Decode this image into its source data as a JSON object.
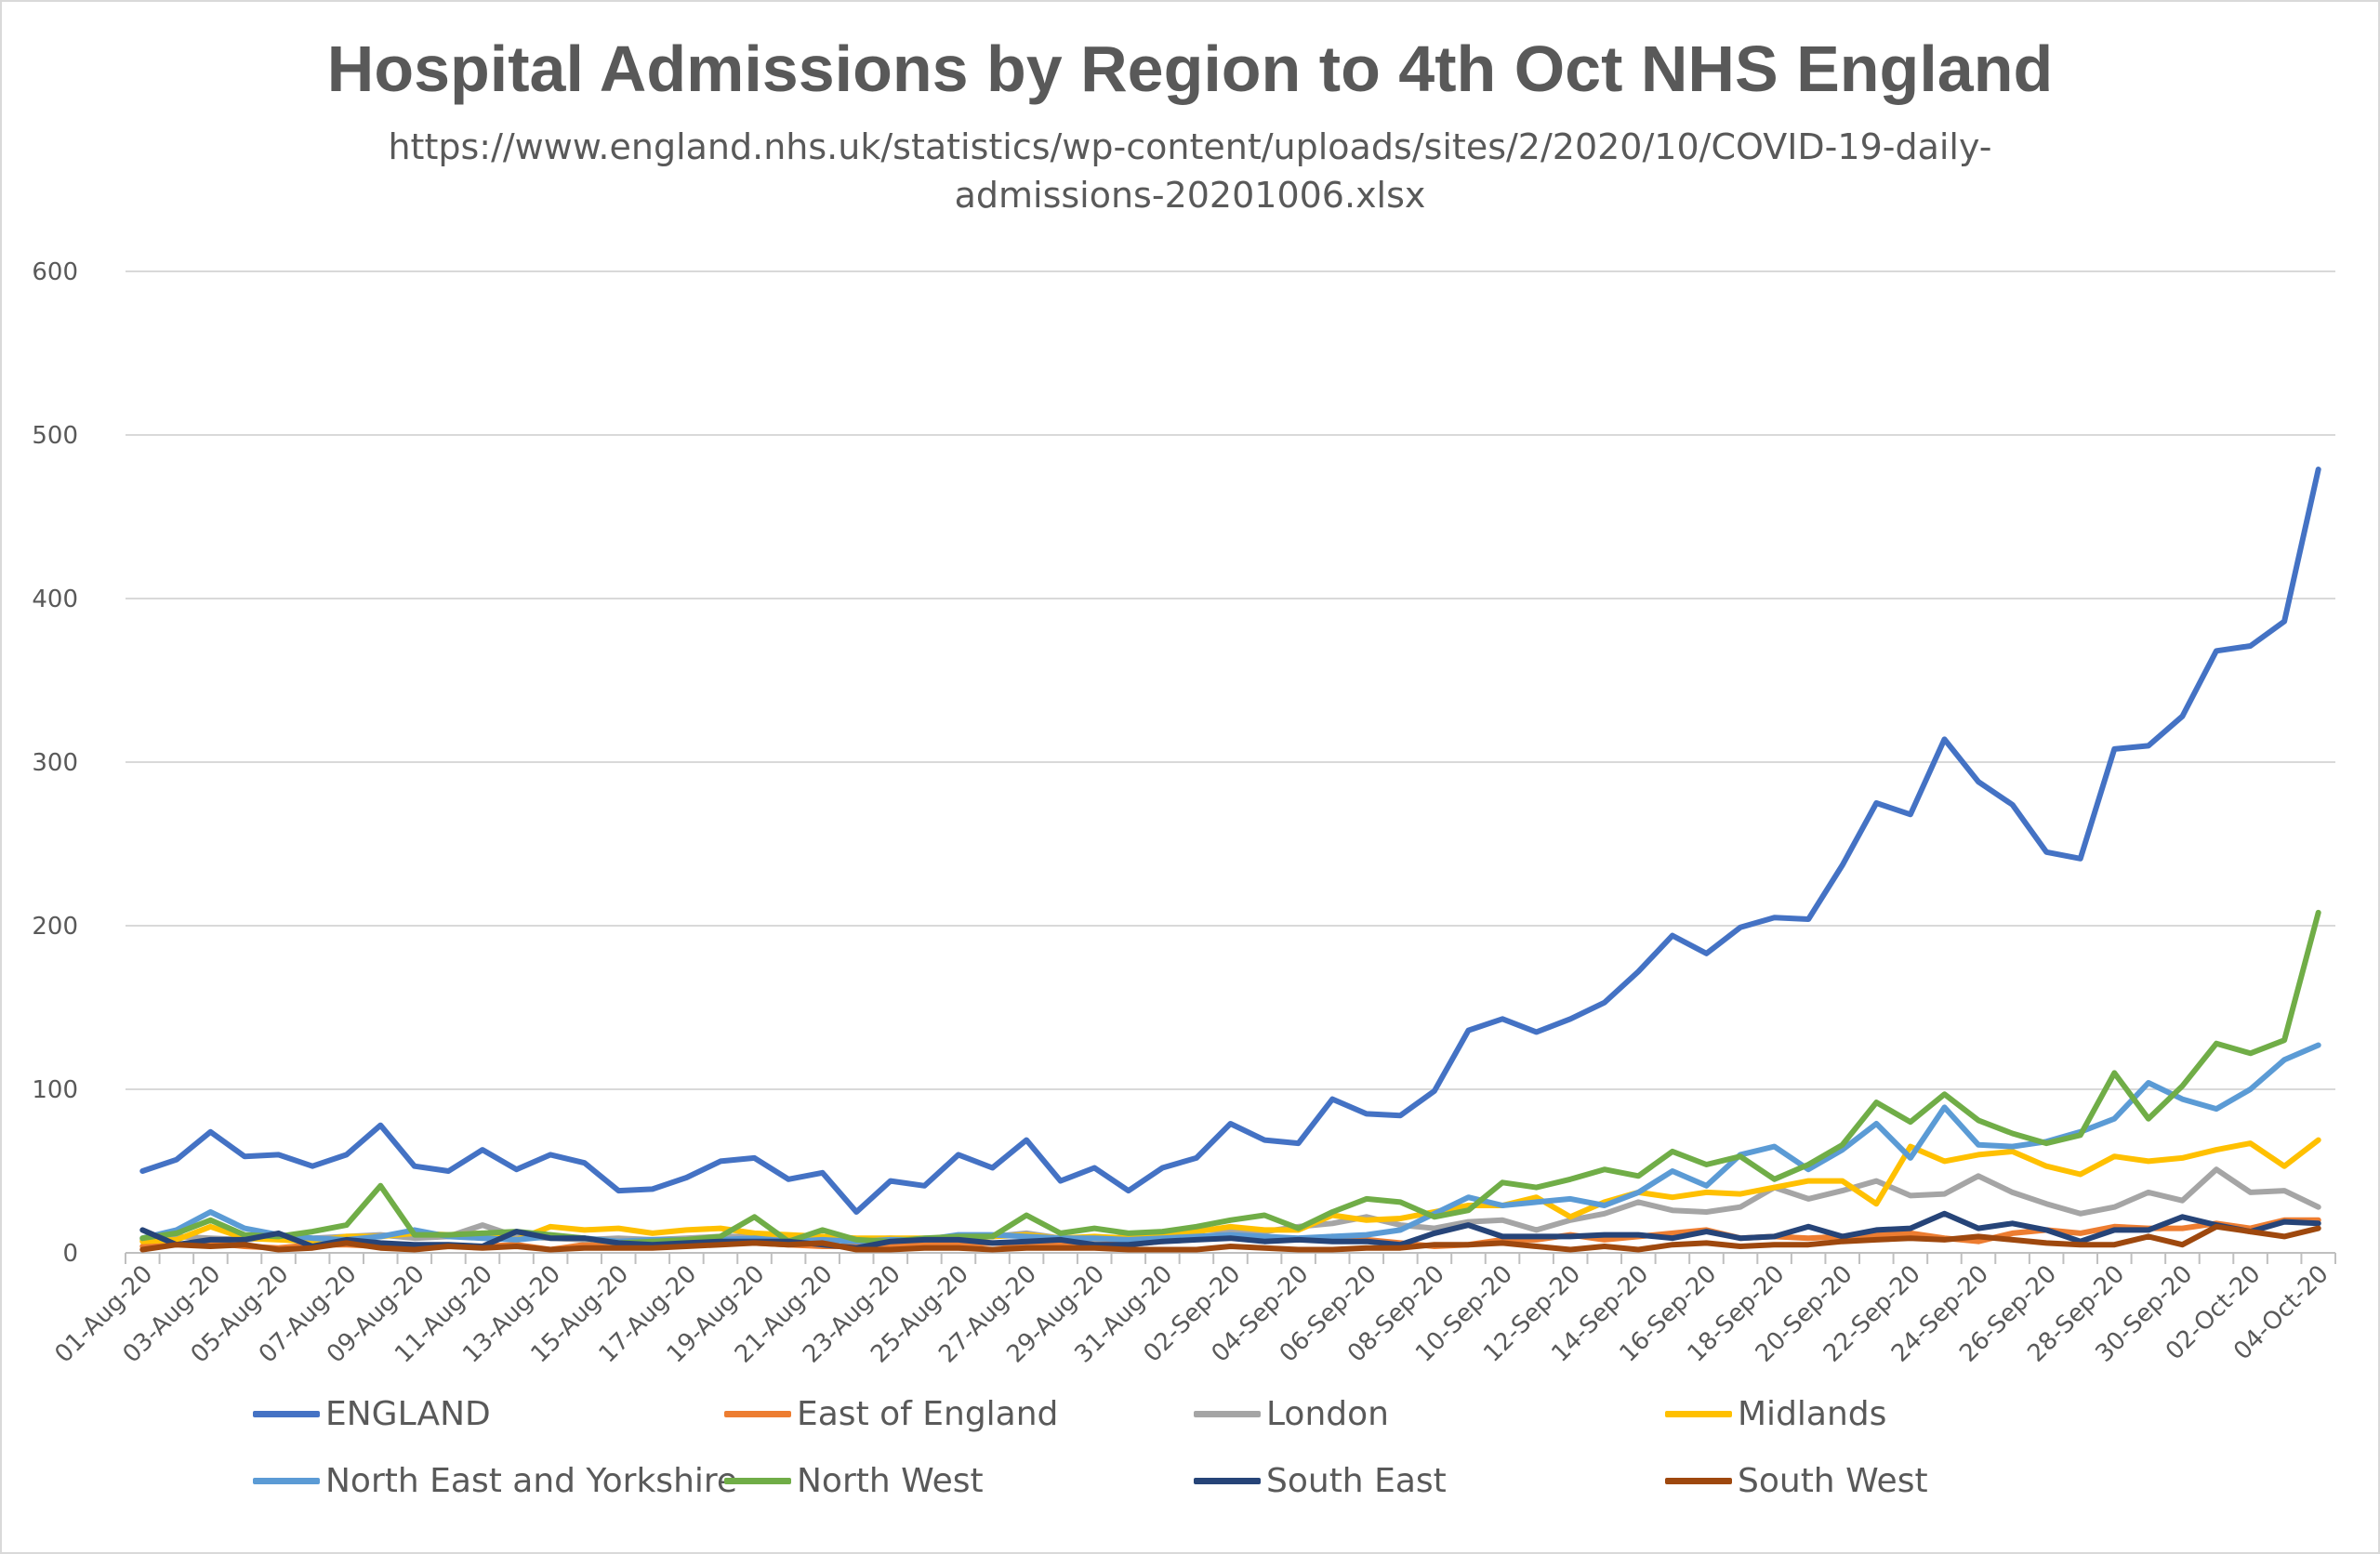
{
  "chart_data": {
    "type": "line",
    "title": "Hospital Admissions by Region to 4th Oct NHS England",
    "subtitle": "https://www.england.nhs.uk/statistics/wp-content/uploads/sites/2/2020/10/COVID-19-daily-admissions-20201006.xlsx",
    "subtitle_lines": [
      "https://www.england.nhs.uk/statistics/wp-content/uploads/sites/2/2020/10/COVID-19-daily-",
      "admissions-20201006.xlsx"
    ],
    "xlabel": "",
    "ylabel": "",
    "ylim": [
      0,
      600
    ],
    "yticks": [
      0,
      100,
      200,
      300,
      400,
      500,
      600
    ],
    "grid": true,
    "legend_position": "bottom",
    "x": [
      "01-Aug-20",
      "02-Aug-20",
      "03-Aug-20",
      "04-Aug-20",
      "05-Aug-20",
      "06-Aug-20",
      "07-Aug-20",
      "08-Aug-20",
      "09-Aug-20",
      "10-Aug-20",
      "11-Aug-20",
      "12-Aug-20",
      "13-Aug-20",
      "14-Aug-20",
      "15-Aug-20",
      "16-Aug-20",
      "17-Aug-20",
      "18-Aug-20",
      "19-Aug-20",
      "20-Aug-20",
      "21-Aug-20",
      "22-Aug-20",
      "23-Aug-20",
      "24-Aug-20",
      "25-Aug-20",
      "26-Aug-20",
      "27-Aug-20",
      "28-Aug-20",
      "29-Aug-20",
      "30-Aug-20",
      "31-Aug-20",
      "01-Sep-20",
      "02-Sep-20",
      "03-Sep-20",
      "04-Sep-20",
      "05-Sep-20",
      "06-Sep-20",
      "07-Sep-20",
      "08-Sep-20",
      "09-Sep-20",
      "10-Sep-20",
      "11-Sep-20",
      "12-Sep-20",
      "13-Sep-20",
      "14-Sep-20",
      "15-Sep-20",
      "16-Sep-20",
      "17-Sep-20",
      "18-Sep-20",
      "19-Sep-20",
      "20-Sep-20",
      "21-Sep-20",
      "22-Sep-20",
      "23-Sep-20",
      "24-Sep-20",
      "25-Sep-20",
      "26-Sep-20",
      "27-Sep-20",
      "28-Sep-20",
      "29-Sep-20",
      "30-Sep-20",
      "01-Oct-20",
      "02-Oct-20",
      "03-Oct-20",
      "04-Oct-20"
    ],
    "x_tick_labels": [
      "01-Aug-20",
      "03-Aug-20",
      "05-Aug-20",
      "07-Aug-20",
      "09-Aug-20",
      "11-Aug-20",
      "13-Aug-20",
      "15-Aug-20",
      "17-Aug-20",
      "19-Aug-20",
      "21-Aug-20",
      "23-Aug-20",
      "25-Aug-20",
      "27-Aug-20",
      "29-Aug-20",
      "31-Aug-20",
      "02-Sep-20",
      "04-Sep-20",
      "06-Sep-20",
      "08-Sep-20",
      "10-Sep-20",
      "12-Sep-20",
      "14-Sep-20",
      "16-Sep-20",
      "18-Sep-20",
      "20-Sep-20",
      "22-Sep-20",
      "24-Sep-20",
      "26-Sep-20",
      "28-Sep-20",
      "30-Sep-20",
      "02-Oct-20",
      "04-Oct-20"
    ],
    "series": [
      {
        "name": "ENGLAND",
        "color": "#4472c4",
        "values": [
          50,
          57,
          74,
          59,
          60,
          53,
          60,
          78,
          53,
          50,
          63,
          51,
          60,
          55,
          38,
          39,
          46,
          56,
          58,
          45,
          49,
          25,
          44,
          41,
          60,
          52,
          69,
          44,
          52,
          38,
          52,
          58,
          79,
          69,
          67,
          94,
          85,
          84,
          99,
          136,
          143,
          135,
          143,
          153,
          172,
          194,
          183,
          199,
          205,
          204,
          237,
          275,
          268,
          314,
          288,
          274,
          245,
          241,
          308,
          310,
          328,
          368,
          371,
          386,
          479
        ]
      },
      {
        "name": "East of England",
        "color": "#ed7d31",
        "values": [
          4,
          5,
          6,
          4,
          3,
          5,
          5,
          4,
          3,
          4,
          4,
          5,
          2,
          5,
          4,
          4,
          5,
          6,
          6,
          5,
          4,
          4,
          5,
          6,
          5,
          6,
          5,
          6,
          6,
          5,
          7,
          9,
          12,
          8,
          8,
          10,
          8,
          6,
          4,
          5,
          8,
          8,
          11,
          8,
          10,
          12,
          14,
          9,
          10,
          9,
          10,
          11,
          12,
          9,
          7,
          12,
          14,
          12,
          16,
          15,
          15,
          18,
          15,
          20,
          20
        ]
      },
      {
        "name": "London",
        "color": "#a5a5a5",
        "values": [
          8,
          10,
          9,
          8,
          10,
          9,
          10,
          11,
          9,
          10,
          17,
          10,
          9,
          8,
          9,
          8,
          9,
          10,
          10,
          9,
          10,
          8,
          9,
          8,
          9,
          10,
          12,
          9,
          8,
          10,
          11,
          14,
          14,
          13,
          16,
          18,
          22,
          17,
          15,
          19,
          20,
          14,
          20,
          24,
          31,
          26,
          25,
          28,
          40,
          33,
          38,
          44,
          35,
          36,
          47,
          37,
          30,
          24,
          28,
          37,
          32,
          51,
          37,
          38,
          28
        ]
      },
      {
        "name": "Midlands",
        "color": "#ffc000",
        "values": [
          7,
          8,
          16,
          9,
          8,
          7,
          10,
          10,
          12,
          11,
          12,
          8,
          16,
          14,
          15,
          12,
          14,
          15,
          12,
          11,
          10,
          9,
          9,
          9,
          9,
          10,
          11,
          9,
          10,
          9,
          11,
          13,
          16,
          14,
          14,
          23,
          20,
          21,
          25,
          29,
          29,
          34,
          22,
          31,
          37,
          34,
          37,
          36,
          40,
          44,
          44,
          30,
          65,
          56,
          60,
          62,
          53,
          48,
          59,
          56,
          58,
          63,
          67,
          53,
          69
        ]
      },
      {
        "name": "North East and Yorkshire",
        "color": "#5b9bd5",
        "values": [
          9,
          14,
          25,
          15,
          11,
          9,
          8,
          10,
          14,
          10,
          9,
          8,
          10,
          9,
          7,
          8,
          8,
          8,
          9,
          7,
          8,
          7,
          8,
          8,
          11,
          11,
          10,
          9,
          9,
          8,
          9,
          10,
          11,
          10,
          9,
          10,
          11,
          14,
          24,
          34,
          29,
          31,
          33,
          29,
          37,
          50,
          41,
          60,
          65,
          51,
          63,
          79,
          58,
          89,
          66,
          65,
          68,
          74,
          82,
          104,
          94,
          88,
          100,
          118,
          127
        ]
      },
      {
        "name": "North West",
        "color": "#70ad47",
        "values": [
          9,
          12,
          20,
          11,
          10,
          13,
          17,
          41,
          11,
          11,
          12,
          13,
          11,
          9,
          6,
          7,
          8,
          10,
          22,
          7,
          14,
          8,
          7,
          9,
          10,
          10,
          23,
          12,
          15,
          12,
          13,
          16,
          20,
          23,
          15,
          25,
          33,
          31,
          22,
          26,
          43,
          40,
          45,
          51,
          47,
          62,
          54,
          59,
          45,
          54,
          66,
          92,
          80,
          97,
          81,
          73,
          67,
          72,
          110,
          82,
          102,
          128,
          122,
          130,
          208
        ]
      },
      {
        "name": "South East",
        "color": "#264478",
        "values": [
          14,
          5,
          8,
          8,
          12,
          4,
          8,
          6,
          5,
          5,
          4,
          13,
          9,
          9,
          6,
          5,
          6,
          7,
          7,
          7,
          5,
          3,
          7,
          8,
          8,
          6,
          7,
          8,
          5,
          5,
          7,
          8,
          9,
          7,
          8,
          7,
          7,
          5,
          12,
          17,
          10,
          10,
          10,
          11,
          11,
          9,
          13,
          9,
          10,
          16,
          10,
          14,
          15,
          24,
          15,
          18,
          14,
          7,
          14,
          14,
          22,
          17,
          13,
          19,
          18
        ]
      },
      {
        "name": "South West",
        "color": "#9e480e",
        "values": [
          2,
          5,
          4,
          5,
          2,
          3,
          6,
          3,
          2,
          4,
          3,
          4,
          2,
          3,
          3,
          3,
          4,
          5,
          6,
          5,
          6,
          2,
          2,
          3,
          3,
          2,
          3,
          3,
          3,
          2,
          2,
          2,
          4,
          3,
          2,
          2,
          3,
          3,
          5,
          5,
          6,
          4,
          2,
          4,
          2,
          5,
          6,
          4,
          5,
          5,
          7,
          8,
          9,
          8,
          10,
          8,
          6,
          5,
          5,
          10,
          5,
          16,
          13,
          10,
          15
        ]
      }
    ]
  }
}
